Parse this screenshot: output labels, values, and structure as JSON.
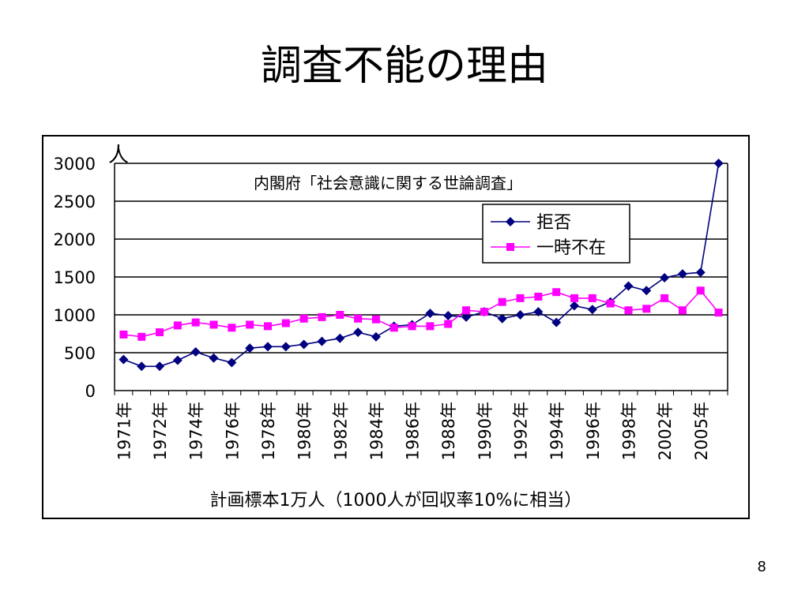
{
  "slide": {
    "title": "調査不能の理由",
    "page_number": "8"
  },
  "chart_data": {
    "type": "line",
    "title": "",
    "annotation": "内閣府「社会意識に関する世論調査」",
    "ylabel": "人",
    "xlabel": "計画標本1万人（1000人が回収率10%に相当）",
    "ylim": [
      0,
      3000
    ],
    "yticks": [
      0,
      500,
      1000,
      1500,
      2000,
      2500,
      3000
    ],
    "grid": true,
    "legend_position": "top-right",
    "x_tick_labels": [
      "1971年",
      "1972年",
      "1974年",
      "1976年",
      "1978年",
      "1980年",
      "1982年",
      "1984年",
      "1986年",
      "1988年",
      "1990年",
      "1992年",
      "1994年",
      "1996年",
      "1998年",
      "2002年",
      "2005年"
    ],
    "series": [
      {
        "name": "拒否",
        "color": "#000080",
        "marker": "diamond",
        "values": [
          410,
          320,
          320,
          400,
          510,
          430,
          370,
          560,
          580,
          580,
          610,
          650,
          690,
          770,
          710,
          850,
          870,
          1020,
          990,
          970,
          1040,
          950,
          1000,
          1040,
          900,
          1120,
          1070,
          1170,
          1380,
          1320,
          1490,
          1540,
          1560,
          3000
        ]
      },
      {
        "name": "一時不在",
        "color": "#ff00ff",
        "marker": "square",
        "values": [
          740,
          710,
          770,
          860,
          900,
          870,
          830,
          870,
          850,
          890,
          950,
          970,
          1000,
          950,
          940,
          830,
          850,
          850,
          880,
          1060,
          1040,
          1170,
          1220,
          1240,
          1300,
          1220,
          1220,
          1150,
          1060,
          1080,
          1220,
          1060,
          1320,
          1030
        ]
      }
    ]
  }
}
